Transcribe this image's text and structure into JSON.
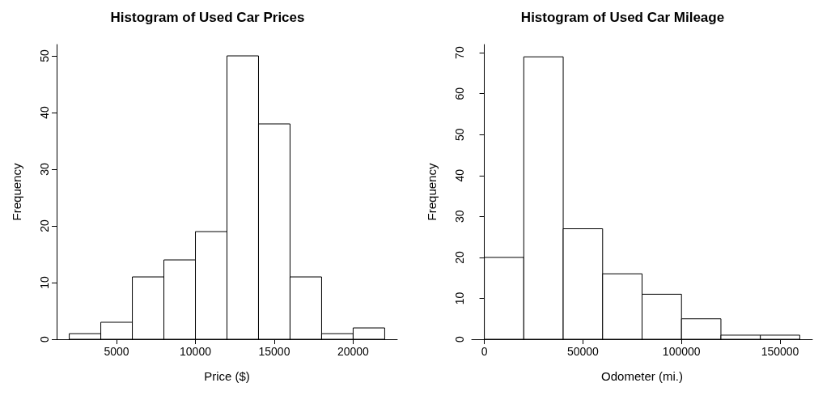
{
  "chart_data": [
    {
      "type": "histogram",
      "title": "Histogram of Used Car Prices",
      "xlabel": "Price ($)",
      "ylabel": "Frequency",
      "bins": [
        2000,
        4000,
        6000,
        8000,
        10000,
        12000,
        14000,
        16000,
        18000,
        20000,
        22000
      ],
      "values": [
        1,
        3,
        11,
        14,
        19,
        50,
        38,
        11,
        1,
        2
      ],
      "color": "#ffffff",
      "xlim": [
        1200,
        22800
      ],
      "ylim": [
        0,
        52
      ],
      "xticks": [
        5000,
        10000,
        15000,
        20000
      ],
      "yticks": [
        0,
        10,
        20,
        30,
        40,
        50
      ]
    },
    {
      "type": "histogram",
      "title": "Histogram of Used Car Mileage",
      "xlabel": "Odometer (mi.)",
      "ylabel": "Frequency",
      "bins": [
        0,
        20000,
        40000,
        60000,
        80000,
        100000,
        120000,
        140000,
        160000
      ],
      "values": [
        20,
        69,
        27,
        16,
        11,
        5,
        1,
        1
      ],
      "color": "#ffffff",
      "xlim": [
        -6400,
        166400
      ],
      "ylim": [
        0,
        72
      ],
      "xticks": [
        0,
        50000,
        100000,
        150000
      ],
      "yticks": [
        0,
        10,
        20,
        30,
        40,
        50,
        60,
        70
      ]
    }
  ]
}
